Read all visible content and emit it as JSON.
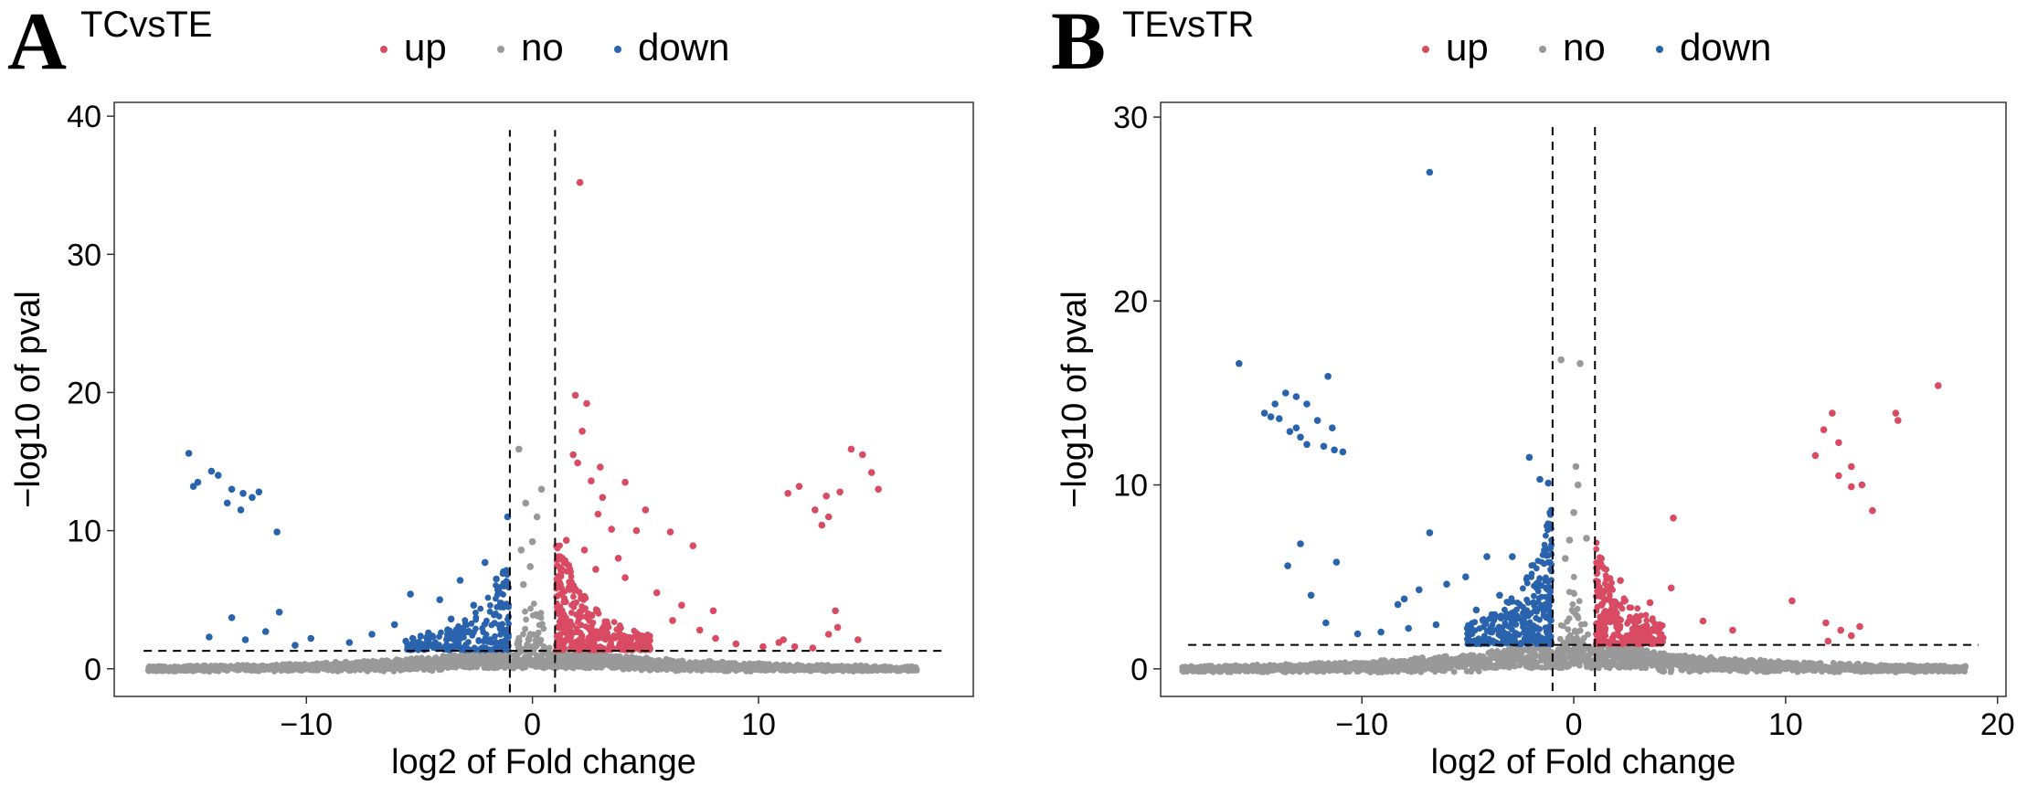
{
  "colors": {
    "up": "#d94b62",
    "no": "#999999",
    "down": "#2a63ad"
  },
  "chart_data": [
    {
      "type": "scatter",
      "panel": "A",
      "title": "TCvsTE",
      "legend": [
        "up",
        "no",
        "down"
      ],
      "xlabel": "log2 of Fold change",
      "ylabel": "−log10 of pval",
      "xlim": [
        -18.5,
        19.5
      ],
      "ylim": [
        -2,
        41
      ],
      "xticks": [
        -10,
        0,
        10
      ],
      "yticks": [
        0,
        10,
        20,
        30,
        40
      ],
      "thresholds": {
        "fc": [
          -1,
          1
        ],
        "pval_y": 1.3,
        "v_top": 39
      },
      "series": {
        "up": [
          [
            2.1,
            35.2
          ],
          [
            1.9,
            19.8
          ],
          [
            2.4,
            19.2
          ],
          [
            2.2,
            17.2
          ],
          [
            1.8,
            15.5
          ],
          [
            2.0,
            14.9
          ],
          [
            3.0,
            14.6
          ],
          [
            2.6,
            13.6
          ],
          [
            4.1,
            13.5
          ],
          [
            3.1,
            12.4
          ],
          [
            2.9,
            11.2
          ],
          [
            5.0,
            11.5
          ],
          [
            3.5,
            10.1
          ],
          [
            4.6,
            10.0
          ],
          [
            6.1,
            9.9
          ],
          [
            7.1,
            8.9
          ],
          [
            1.5,
            9.3
          ],
          [
            2.3,
            8.6
          ],
          [
            3.8,
            8.0
          ],
          [
            1.6,
            7.5
          ],
          [
            2.8,
            7.2
          ],
          [
            4.1,
            6.6
          ],
          [
            5.5,
            5.5
          ],
          [
            6.6,
            4.6
          ],
          [
            8.0,
            4.2
          ],
          [
            6.2,
            3.5
          ],
          [
            7.4,
            2.8
          ],
          [
            8.1,
            2.2
          ],
          [
            9.0,
            1.8
          ],
          [
            14.1,
            15.9
          ],
          [
            14.6,
            15.5
          ],
          [
            15.0,
            14.2
          ],
          [
            15.3,
            13.0
          ],
          [
            13.0,
            12.5
          ],
          [
            13.6,
            12.8
          ],
          [
            12.5,
            11.5
          ],
          [
            11.3,
            12.7
          ],
          [
            13.1,
            11.0
          ],
          [
            12.8,
            10.4
          ],
          [
            11.8,
            13.2
          ],
          [
            13.4,
            4.2
          ],
          [
            13.5,
            3.0
          ],
          [
            14.4,
            2.1
          ],
          [
            13.1,
            2.5
          ],
          [
            10.2,
            1.6
          ],
          [
            10.9,
            1.9
          ],
          [
            11.6,
            1.6
          ],
          [
            12.4,
            1.5
          ],
          [
            11.1,
            2.1
          ]
        ],
        "down": [
          [
            -15.2,
            15.6
          ],
          [
            -14.2,
            14.3
          ],
          [
            -13.9,
            14.0
          ],
          [
            -14.8,
            13.5
          ],
          [
            -15.0,
            13.2
          ],
          [
            -13.3,
            13.0
          ],
          [
            -12.8,
            12.7
          ],
          [
            -12.4,
            12.4
          ],
          [
            -12.1,
            12.8
          ],
          [
            -13.5,
            12.0
          ],
          [
            -12.9,
            11.5
          ],
          [
            -11.3,
            9.9
          ],
          [
            -12.7,
            2.1
          ],
          [
            -11.2,
            4.1
          ],
          [
            -11.8,
            2.7
          ],
          [
            -13.3,
            3.7
          ],
          [
            -14.3,
            2.3
          ],
          [
            -9.8,
            2.2
          ],
          [
            -10.5,
            1.7
          ],
          [
            -7.1,
            2.5
          ],
          [
            -6.1,
            3.2
          ],
          [
            -5.4,
            5.4
          ],
          [
            -4.1,
            5.0
          ],
          [
            -3.2,
            6.4
          ],
          [
            -2.1,
            7.7
          ],
          [
            -1.6,
            6.5
          ],
          [
            -1.3,
            6.9
          ],
          [
            -2.6,
            4.6
          ],
          [
            -3.6,
            3.6
          ],
          [
            -4.6,
            2.6
          ],
          [
            -5.6,
            2.0
          ],
          [
            -8.1,
            1.9
          ],
          [
            -1.1,
            11.0
          ]
        ],
        "no": [
          [
            -0.6,
            15.9
          ],
          [
            -0.3,
            12.0
          ],
          [
            0.4,
            13.0
          ],
          [
            0.2,
            11.0
          ],
          [
            0.0,
            9.2
          ],
          [
            -0.1,
            7.4
          ],
          [
            -0.4,
            6.1
          ],
          [
            -0.5,
            8.6
          ]
        ]
      }
    },
    {
      "type": "scatter",
      "panel": "B",
      "title": "TEvsTR",
      "legend": [
        "up",
        "no",
        "down"
      ],
      "xlabel": "log2 of Fold change",
      "ylabel": "−log10 of pval",
      "xlim": [
        -19.5,
        20.4
      ],
      "ylim": [
        -1.5,
        30.8
      ],
      "xticks": [
        -10,
        0,
        10,
        20
      ],
      "yticks": [
        0,
        10,
        20,
        30
      ],
      "thresholds": {
        "fc": [
          -1,
          1
        ],
        "pval_y": 1.3,
        "v_top": 29.8
      },
      "series": {
        "up": [
          [
            17.2,
            15.4
          ],
          [
            15.2,
            13.9
          ],
          [
            15.3,
            13.5
          ],
          [
            12.2,
            13.9
          ],
          [
            11.8,
            13.0
          ],
          [
            12.5,
            12.3
          ],
          [
            11.4,
            11.6
          ],
          [
            13.1,
            11.0
          ],
          [
            12.5,
            10.5
          ],
          [
            13.6,
            10.0
          ],
          [
            13.1,
            9.9
          ],
          [
            14.1,
            8.6
          ],
          [
            4.7,
            8.2
          ],
          [
            1.3,
            6.0
          ],
          [
            2.2,
            4.8
          ],
          [
            3.6,
            3.6
          ],
          [
            4.6,
            4.4
          ],
          [
            6.1,
            2.6
          ],
          [
            7.5,
            2.1
          ],
          [
            10.3,
            3.7
          ],
          [
            11.9,
            2.5
          ],
          [
            12.6,
            2.1
          ],
          [
            13.1,
            1.8
          ],
          [
            13.5,
            2.3
          ],
          [
            12.0,
            1.5
          ],
          [
            1.9,
            2.7
          ],
          [
            2.8,
            2.1
          ]
        ],
        "down": [
          [
            -6.8,
            27.0
          ],
          [
            -15.8,
            16.6
          ],
          [
            -11.6,
            15.9
          ],
          [
            -13.6,
            15.0
          ],
          [
            -13.1,
            14.8
          ],
          [
            -12.6,
            14.4
          ],
          [
            -14.1,
            14.4
          ],
          [
            -14.6,
            13.9
          ],
          [
            -13.9,
            13.6
          ],
          [
            -12.1,
            13.5
          ],
          [
            -11.4,
            13.1
          ],
          [
            -13.1,
            13.1
          ],
          [
            -12.9,
            12.6
          ],
          [
            -12.6,
            12.2
          ],
          [
            -11.8,
            12.1
          ],
          [
            -11.3,
            11.9
          ],
          [
            -10.9,
            11.8
          ],
          [
            -13.4,
            12.9
          ],
          [
            -14.3,
            13.7
          ],
          [
            -12.9,
            6.8
          ],
          [
            -11.2,
            5.8
          ],
          [
            -13.5,
            5.6
          ],
          [
            -12.4,
            4.0
          ],
          [
            -11.7,
            2.5
          ],
          [
            -6.8,
            7.4
          ],
          [
            -2.1,
            11.5
          ],
          [
            -1.6,
            10.3
          ],
          [
            -1.2,
            10.1
          ],
          [
            -2.9,
            6.1
          ],
          [
            -4.1,
            6.1
          ],
          [
            -5.1,
            5.0
          ],
          [
            -6.0,
            4.6
          ],
          [
            -7.3,
            4.3
          ],
          [
            -8.0,
            3.8
          ],
          [
            -8.3,
            3.5
          ],
          [
            -3.5,
            4.0
          ],
          [
            -4.6,
            3.2
          ],
          [
            -6.5,
            2.4
          ],
          [
            -7.8,
            2.2
          ],
          [
            -9.1,
            2.0
          ],
          [
            -10.2,
            1.9
          ],
          [
            -1.3,
            4.4
          ],
          [
            -1.9,
            3.6
          ],
          [
            -2.4,
            2.5
          ],
          [
            -3.0,
            2.3
          ],
          [
            -1.1,
            8.4
          ]
        ],
        "no": [
          [
            -0.6,
            16.8
          ],
          [
            0.3,
            16.6
          ],
          [
            0.1,
            11.0
          ],
          [
            0.2,
            10.0
          ],
          [
            0.0,
            8.5
          ],
          [
            -0.2,
            7.0
          ],
          [
            0.6,
            7.1
          ],
          [
            -0.4,
            6.0
          ]
        ]
      }
    }
  ]
}
